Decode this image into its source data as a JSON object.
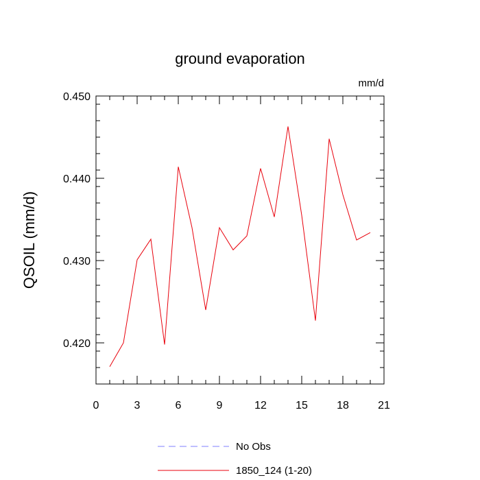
{
  "chart_data": {
    "type": "line",
    "title": "ground evaporation",
    "units_label": "mm/d",
    "xlabel": "",
    "ylabel": "QSOIL  (mm/d)",
    "xlim": [
      0,
      21
    ],
    "ylim": [
      0.415,
      0.45
    ],
    "x_ticks": [
      0,
      3,
      6,
      9,
      12,
      15,
      18,
      21
    ],
    "x_tick_labels": [
      "0",
      "3",
      "6",
      "9",
      "12",
      "15",
      "18",
      "21"
    ],
    "y_ticks": [
      0.42,
      0.43,
      0.44,
      0.45
    ],
    "y_tick_labels": [
      "0.420",
      "0.430",
      "0.440",
      "0.450"
    ],
    "grid": false,
    "legend_position": "bottom",
    "series": [
      {
        "name": "1850_124 (1-20)",
        "color": "#e8000b",
        "line_style": "solid",
        "x": [
          1,
          2,
          3,
          4,
          5,
          6,
          7,
          8,
          9,
          10,
          11,
          12,
          13,
          14,
          15,
          16,
          17,
          18,
          19,
          20
        ],
        "values": [
          0.4171,
          0.42,
          0.4301,
          0.4326,
          0.4198,
          0.4414,
          0.434,
          0.424,
          0.434,
          0.4313,
          0.433,
          0.4412,
          0.4353,
          0.4463,
          0.4355,
          0.4227,
          0.4448,
          0.438,
          0.4325,
          0.4334
        ]
      }
    ],
    "legend": [
      {
        "name": "No Obs",
        "color": "#7f7fff",
        "line_style": "dashed"
      },
      {
        "name": "1850_124 (1-20)",
        "color": "#e8000b",
        "line_style": "solid"
      }
    ]
  }
}
